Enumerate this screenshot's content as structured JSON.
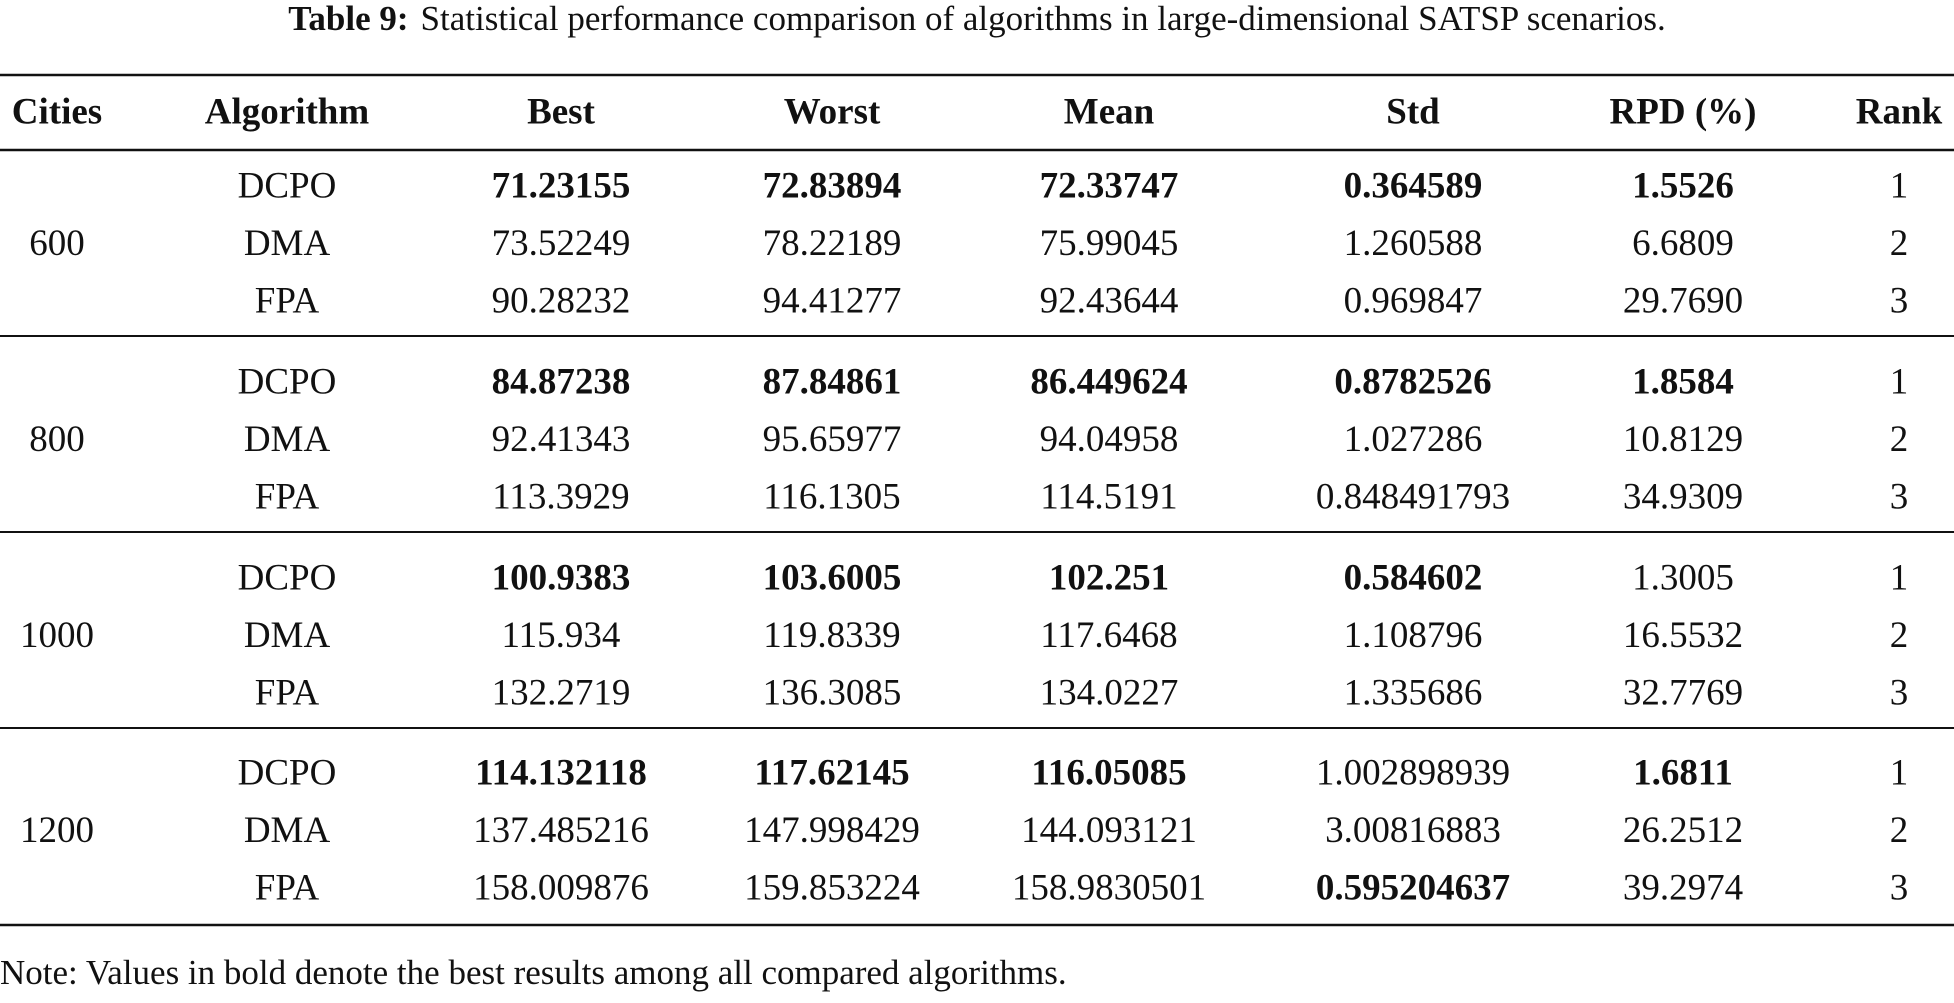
{
  "caption": {
    "label": "Table 9:",
    "text": "Statistical performance comparison of algorithms in large-dimensional SATSP scenarios."
  },
  "table": {
    "columns": [
      "Cities",
      "Algorithm",
      "Best",
      "Worst",
      "Mean",
      "Std",
      "RPD (%)",
      "Rank"
    ],
    "groups": [
      {
        "cities": "600",
        "rows": [
          [
            "DCPO",
            "71.23155",
            "72.83894",
            "72.33747",
            "0.364589",
            "1.5526",
            "1"
          ],
          [
            "DMA",
            "73.52249",
            "78.22189",
            "75.99045",
            "1.260588",
            "6.6809",
            "2"
          ],
          [
            "FPA",
            "90.28232",
            "94.41277",
            "92.43644",
            "0.969847",
            "29.7690",
            "3"
          ]
        ]
      },
      {
        "cities": "800",
        "rows": [
          [
            "DCPO",
            "84.87238",
            "87.84861",
            "86.449624",
            "0.8782526",
            "1.8584",
            "1"
          ],
          [
            "DMA",
            "92.41343",
            "95.65977",
            "94.04958",
            "1.027286",
            "10.8129",
            "2"
          ],
          [
            "FPA",
            "113.3929",
            "116.1305",
            "114.5191",
            "0.848491793",
            "34.9309",
            "3"
          ]
        ]
      },
      {
        "cities": "1000",
        "rows": [
          [
            "DCPO",
            "100.9383",
            "103.6005",
            "102.251",
            "0.584602",
            "1.3005",
            "1"
          ],
          [
            "DMA",
            "115.934",
            "119.8339",
            "117.6468",
            "1.108796",
            "16.5532",
            "2"
          ],
          [
            "FPA",
            "132.2719",
            "136.3085",
            "134.0227",
            "1.335686",
            "32.7769",
            "3"
          ]
        ]
      },
      {
        "cities": "1200",
        "rows": [
          [
            "DCPO",
            "114.132118",
            "117.62145",
            "116.05085",
            "1.002898939",
            "1.6811",
            "1"
          ],
          [
            "DMA",
            "137.485216",
            "147.998429",
            "144.093121",
            "3.00816883",
            "26.2512",
            "2"
          ],
          [
            "FPA",
            "158.009876",
            "159.853224",
            "158.9830501",
            "0.595204637",
            "39.2974",
            "3"
          ]
        ]
      }
    ]
  },
  "note": "Note: Values in bold denote the best results among all compared algorithms."
}
